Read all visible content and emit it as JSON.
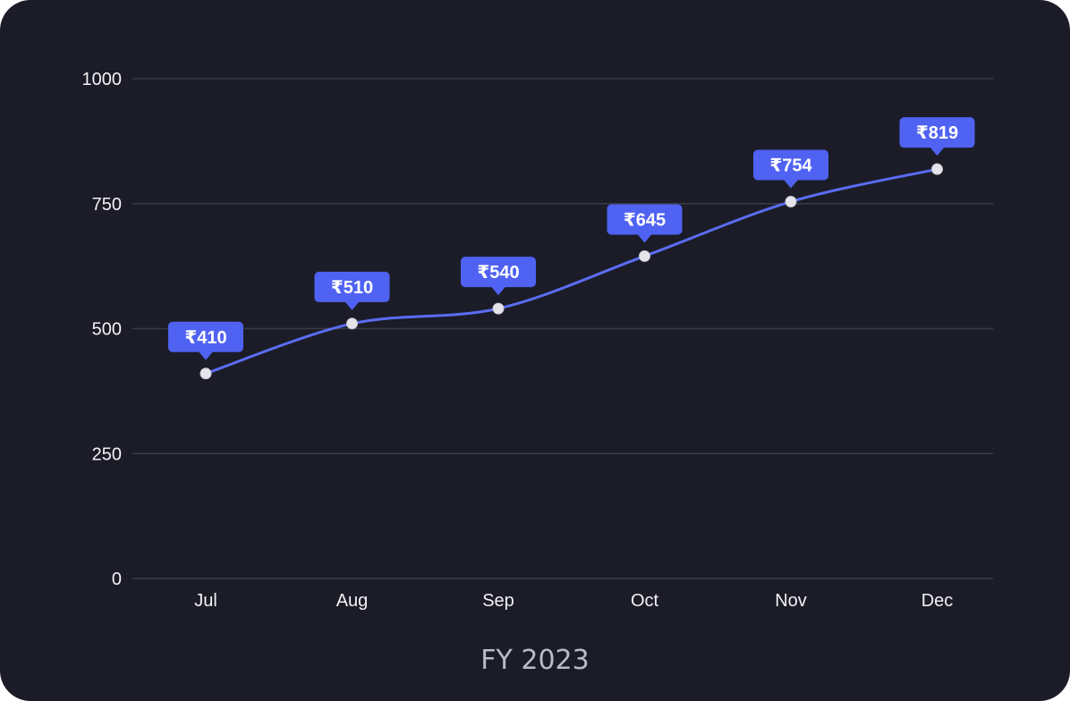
{
  "chart_data": {
    "type": "line",
    "categories": [
      "Jul",
      "Aug",
      "Sep",
      "Oct",
      "Nov",
      "Dec"
    ],
    "series": [
      {
        "values": [
          410,
          510,
          540,
          645,
          754,
          819
        ],
        "labels": [
          "₹410",
          "₹510",
          "₹540",
          "₹645",
          "₹754",
          "₹819"
        ],
        "color": "#5b6cf2"
      }
    ],
    "xlabel": "FY 2023",
    "ylabel": "",
    "ylim": [
      0,
      1000
    ],
    "yticks": [
      "0",
      "250",
      "500",
      "750",
      "1000"
    ],
    "ytick_values": [
      0,
      250,
      500,
      750,
      1000
    ],
    "grid": true,
    "colors": {
      "background": "#1b1c28",
      "grid": "#3a3b47",
      "line": "#5b6cf2",
      "callout": "#4f62f2",
      "marker": "#e4e4ea"
    }
  }
}
